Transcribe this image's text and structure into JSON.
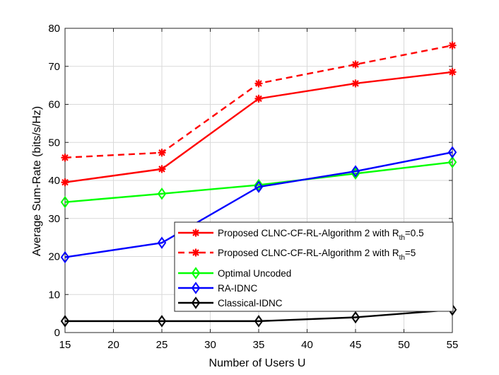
{
  "chart_data": {
    "type": "line",
    "title": "",
    "xlabel": "Number of Users U",
    "ylabel": "Average Sum-Rate (bits/s/Hz)",
    "xlim": [
      15,
      55
    ],
    "ylim": [
      0,
      80
    ],
    "xticks": [
      15,
      20,
      25,
      30,
      35,
      40,
      45,
      50,
      55
    ],
    "yticks": [
      0,
      10,
      20,
      30,
      40,
      50,
      60,
      70,
      80
    ],
    "grid": true,
    "legend_position": "bottom-right",
    "x": [
      15,
      25,
      35,
      45,
      55
    ],
    "series": [
      {
        "name": "Proposed CLNC-CF-RL-Algorithm 2 with R",
        "subscript": "th",
        "suffix": "=0.5",
        "color": "#ff0000",
        "dash": "solid",
        "marker": "asterisk",
        "values": [
          39.5,
          43.0,
          61.5,
          65.5,
          68.5
        ]
      },
      {
        "name": "Proposed CLNC-CF-RL-Algorithm 2 with R",
        "subscript": "th",
        "suffix": "=5",
        "color": "#ff0000",
        "dash": "dashed",
        "marker": "asterisk",
        "values": [
          46.0,
          47.3,
          65.5,
          70.5,
          75.5
        ]
      },
      {
        "name": "Optimal Uncoded",
        "subscript": "",
        "suffix": "",
        "color": "#00ff00",
        "dash": "solid",
        "marker": "diamond",
        "values": [
          34.3,
          36.5,
          38.8,
          41.8,
          44.8
        ]
      },
      {
        "name": "RA-IDNC",
        "subscript": "",
        "suffix": "",
        "color": "#0000ff",
        "dash": "solid",
        "marker": "diamond",
        "values": [
          19.8,
          23.6,
          38.3,
          42.4,
          47.4
        ]
      },
      {
        "name": "Classical-IDNC",
        "subscript": "",
        "suffix": "",
        "color": "#000000",
        "dash": "solid",
        "marker": "diamond",
        "values": [
          3.0,
          3.0,
          3.0,
          4.0,
          6.0
        ]
      }
    ]
  }
}
